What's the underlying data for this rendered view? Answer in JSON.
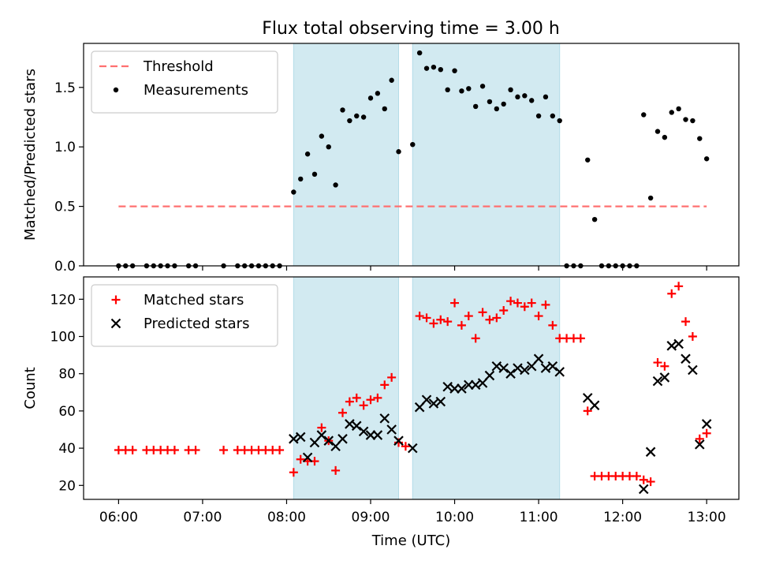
{
  "chart_data": [
    {
      "type": "scatter",
      "title": "Flux total observing time = 3.00 h",
      "xlabel": "",
      "ylabel": "Matched/Predicted stars",
      "xlim": [
        "05:35",
        "13:23"
      ],
      "ylim": [
        0,
        1.87
      ],
      "yticks": [
        0,
        0.5,
        1.0,
        1.5
      ],
      "ytick_labels": [
        "0.0",
        "0.5",
        "1.0",
        "1.5"
      ],
      "legend_position": "top-left",
      "grid": false,
      "shaded_intervals": [
        [
          "08:05",
          "09:20"
        ],
        [
          "09:30",
          "11:15"
        ]
      ],
      "shade_color": "#add8e6",
      "series": [
        {
          "name": "Threshold",
          "kind": "dashed-line",
          "color": "#ff7070",
          "x": [
            "06:00",
            "13:00"
          ],
          "y": [
            0.5,
            0.5
          ]
        },
        {
          "name": "Measurements",
          "kind": "dot",
          "color": "#000000",
          "points": [
            [
              "06:00",
              0
            ],
            [
              "06:05",
              0
            ],
            [
              "06:10",
              0
            ],
            [
              "06:20",
              0
            ],
            [
              "06:25",
              0
            ],
            [
              "06:30",
              0
            ],
            [
              "06:35",
              0
            ],
            [
              "06:40",
              0
            ],
            [
              "06:50",
              0
            ],
            [
              "06:55",
              0
            ],
            [
              "07:15",
              0
            ],
            [
              "07:25",
              0
            ],
            [
              "07:30",
              0
            ],
            [
              "07:35",
              0
            ],
            [
              "07:40",
              0
            ],
            [
              "07:45",
              0
            ],
            [
              "07:50",
              0
            ],
            [
              "07:55",
              0
            ],
            [
              "08:05",
              0.62
            ],
            [
              "08:10",
              0.73
            ],
            [
              "08:15",
              0.94
            ],
            [
              "08:20",
              0.77
            ],
            [
              "08:25",
              1.09
            ],
            [
              "08:30",
              1.0
            ],
            [
              "08:35",
              0.68
            ],
            [
              "08:40",
              1.31
            ],
            [
              "08:45",
              1.22
            ],
            [
              "08:50",
              1.26
            ],
            [
              "08:55",
              1.25
            ],
            [
              "09:00",
              1.41
            ],
            [
              "09:05",
              1.45
            ],
            [
              "09:10",
              1.32
            ],
            [
              "09:15",
              1.56
            ],
            [
              "09:20",
              0.96
            ],
            [
              "09:30",
              1.02
            ],
            [
              "09:35",
              1.79
            ],
            [
              "09:40",
              1.66
            ],
            [
              "09:45",
              1.67
            ],
            [
              "09:50",
              1.65
            ],
            [
              "09:55",
              1.48
            ],
            [
              "10:00",
              1.64
            ],
            [
              "10:05",
              1.47
            ],
            [
              "10:10",
              1.49
            ],
            [
              "10:15",
              1.34
            ],
            [
              "10:20",
              1.51
            ],
            [
              "10:25",
              1.38
            ],
            [
              "10:30",
              1.32
            ],
            [
              "10:35",
              1.36
            ],
            [
              "10:40",
              1.48
            ],
            [
              "10:45",
              1.42
            ],
            [
              "10:50",
              1.43
            ],
            [
              "10:55",
              1.39
            ],
            [
              "11:00",
              1.26
            ],
            [
              "11:05",
              1.42
            ],
            [
              "11:10",
              1.26
            ],
            [
              "11:15",
              1.22
            ],
            [
              "11:20",
              0
            ],
            [
              "11:25",
              0
            ],
            [
              "11:30",
              0
            ],
            [
              "11:35",
              0.89
            ],
            [
              "11:40",
              0.39
            ],
            [
              "11:45",
              0
            ],
            [
              "11:50",
              0
            ],
            [
              "11:55",
              0
            ],
            [
              "12:00",
              0
            ],
            [
              "12:05",
              0
            ],
            [
              "12:10",
              0
            ],
            [
              "12:15",
              1.27
            ],
            [
              "12:20",
              0.57
            ],
            [
              "12:25",
              1.13
            ],
            [
              "12:30",
              1.08
            ],
            [
              "12:35",
              1.29
            ],
            [
              "12:40",
              1.32
            ],
            [
              "12:45",
              1.23
            ],
            [
              "12:50",
              1.22
            ],
            [
              "12:55",
              1.07
            ],
            [
              "13:00",
              0.9
            ]
          ]
        }
      ]
    },
    {
      "type": "scatter",
      "title": "",
      "xlabel": "Time (UTC)",
      "ylabel": "Count",
      "xlim": [
        "05:35",
        "13:23"
      ],
      "ylim": [
        12.5,
        132
      ],
      "yticks": [
        20,
        40,
        60,
        80,
        100,
        120
      ],
      "ytick_labels": [
        "20",
        "40",
        "60",
        "80",
        "100",
        "120"
      ],
      "xticks": [
        "06:00",
        "07:00",
        "08:00",
        "09:00",
        "10:00",
        "11:00",
        "12:00",
        "13:00"
      ],
      "xtick_labels": [
        "06:00",
        "07:00",
        "08:00",
        "09:00",
        "10:00",
        "11:00",
        "12:00",
        "13:00"
      ],
      "legend_position": "top-left",
      "grid": false,
      "shaded_intervals": [
        [
          "08:05",
          "09:20"
        ],
        [
          "09:30",
          "11:15"
        ]
      ],
      "shade_color": "#add8e6",
      "series": [
        {
          "name": "Matched stars",
          "kind": "plus",
          "color": "#ff0000",
          "points": [
            [
              "06:00",
              39
            ],
            [
              "06:05",
              39
            ],
            [
              "06:10",
              39
            ],
            [
              "06:20",
              39
            ],
            [
              "06:25",
              39
            ],
            [
              "06:30",
              39
            ],
            [
              "06:35",
              39
            ],
            [
              "06:40",
              39
            ],
            [
              "06:50",
              39
            ],
            [
              "06:55",
              39
            ],
            [
              "07:15",
              39
            ],
            [
              "07:25",
              39
            ],
            [
              "07:30",
              39
            ],
            [
              "07:35",
              39
            ],
            [
              "07:40",
              39
            ],
            [
              "07:45",
              39
            ],
            [
              "07:50",
              39
            ],
            [
              "07:55",
              39
            ],
            [
              "08:05",
              27
            ],
            [
              "08:10",
              34
            ],
            [
              "08:15",
              33
            ],
            [
              "08:20",
              33
            ],
            [
              "08:25",
              51
            ],
            [
              "08:30",
              44
            ],
            [
              "08:35",
              28
            ],
            [
              "08:40",
              59
            ],
            [
              "08:45",
              65
            ],
            [
              "08:50",
              67
            ],
            [
              "08:55",
              63
            ],
            [
              "09:00",
              66
            ],
            [
              "09:05",
              67
            ],
            [
              "09:10",
              74
            ],
            [
              "09:15",
              78
            ],
            [
              "09:20",
              43
            ],
            [
              "09:25",
              41
            ],
            [
              "09:35",
              111
            ],
            [
              "09:40",
              110
            ],
            [
              "09:45",
              107
            ],
            [
              "09:50",
              109
            ],
            [
              "09:55",
              108
            ],
            [
              "10:00",
              118
            ],
            [
              "10:05",
              106
            ],
            [
              "10:10",
              111
            ],
            [
              "10:15",
              99
            ],
            [
              "10:20",
              113
            ],
            [
              "10:25",
              109
            ],
            [
              "10:30",
              110
            ],
            [
              "10:35",
              114
            ],
            [
              "10:40",
              119
            ],
            [
              "10:45",
              118
            ],
            [
              "10:50",
              116
            ],
            [
              "10:55",
              118
            ],
            [
              "11:00",
              111
            ],
            [
              "11:05",
              117
            ],
            [
              "11:10",
              106
            ],
            [
              "11:15",
              99
            ],
            [
              "11:20",
              99
            ],
            [
              "11:25",
              99
            ],
            [
              "11:30",
              99
            ],
            [
              "11:35",
              60
            ],
            [
              "11:40",
              25
            ],
            [
              "11:45",
              25
            ],
            [
              "11:50",
              25
            ],
            [
              "11:55",
              25
            ],
            [
              "12:00",
              25
            ],
            [
              "12:05",
              25
            ],
            [
              "12:10",
              25
            ],
            [
              "12:15",
              23
            ],
            [
              "12:20",
              22
            ],
            [
              "12:25",
              86
            ],
            [
              "12:30",
              84
            ],
            [
              "12:35",
              123
            ],
            [
              "12:40",
              127
            ],
            [
              "12:45",
              108
            ],
            [
              "12:50",
              100
            ],
            [
              "12:55",
              45
            ],
            [
              "13:00",
              48
            ]
          ]
        },
        {
          "name": "Predicted stars",
          "kind": "x",
          "color": "#000000",
          "points": [
            [
              "08:05",
              45
            ],
            [
              "08:10",
              46
            ],
            [
              "08:15",
              35
            ],
            [
              "08:20",
              43
            ],
            [
              "08:25",
              47
            ],
            [
              "08:30",
              44
            ],
            [
              "08:35",
              41
            ],
            [
              "08:40",
              45
            ],
            [
              "08:45",
              53
            ],
            [
              "08:50",
              52
            ],
            [
              "08:55",
              49
            ],
            [
              "09:00",
              47
            ],
            [
              "09:05",
              47
            ],
            [
              "09:10",
              56
            ],
            [
              "09:15",
              50
            ],
            [
              "09:20",
              44
            ],
            [
              "09:30",
              40
            ],
            [
              "09:35",
              62
            ],
            [
              "09:40",
              66
            ],
            [
              "09:45",
              64
            ],
            [
              "09:50",
              65
            ],
            [
              "09:55",
              73
            ],
            [
              "10:00",
              72
            ],
            [
              "10:05",
              72
            ],
            [
              "10:10",
              74
            ],
            [
              "10:15",
              74
            ],
            [
              "10:20",
              75
            ],
            [
              "10:25",
              79
            ],
            [
              "10:30",
              84
            ],
            [
              "10:35",
              83
            ],
            [
              "10:40",
              80
            ],
            [
              "10:45",
              83
            ],
            [
              "10:50",
              82
            ],
            [
              "10:55",
              84
            ],
            [
              "11:00",
              88
            ],
            [
              "11:05",
              83
            ],
            [
              "11:10",
              84
            ],
            [
              "11:15",
              81
            ],
            [
              "11:35",
              67
            ],
            [
              "11:40",
              63
            ],
            [
              "12:15",
              18
            ],
            [
              "12:20",
              38
            ],
            [
              "12:25",
              76
            ],
            [
              "12:30",
              78
            ],
            [
              "12:35",
              95
            ],
            [
              "12:40",
              96
            ],
            [
              "12:45",
              88
            ],
            [
              "12:50",
              82
            ],
            [
              "12:55",
              42
            ],
            [
              "13:00",
              53
            ]
          ]
        }
      ]
    }
  ]
}
